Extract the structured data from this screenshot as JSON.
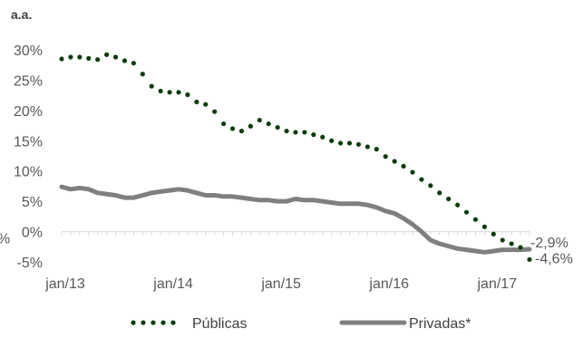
{
  "chart_data": {
    "type": "line",
    "unit_label": "a.a.",
    "y_ticks": [
      "30%",
      "25%",
      "20%",
      "15%",
      "10%",
      "5%",
      "0%",
      "-5%"
    ],
    "y_tick_values": [
      30,
      25,
      20,
      15,
      10,
      5,
      0,
      -5
    ],
    "x_ticks": [
      "jan/13",
      "jan/14",
      "jan/15",
      "jan/16",
      "jan/17"
    ],
    "ylim": [
      -5,
      30
    ],
    "x_range": [
      "jan/13",
      "fev/17"
    ],
    "grid": false,
    "legend_position": "bottom",
    "colors": {
      "publicas": "#0b3d0b",
      "privadas": "#7f7f7f"
    },
    "series": [
      {
        "name": "Públicas",
        "style": "dotted",
        "values": [
          28.5,
          28.8,
          28.8,
          28.6,
          28.4,
          29.2,
          28.8,
          28.2,
          27.8,
          26.0,
          24.0,
          23.2,
          23.0,
          23.0,
          22.6,
          21.4,
          21.0,
          19.8,
          17.8,
          17.0,
          16.6,
          17.4,
          18.4,
          17.8,
          17.2,
          16.6,
          16.4,
          16.4,
          16.0,
          15.6,
          15.0,
          14.6,
          14.6,
          14.4,
          14.0,
          13.6,
          12.4,
          11.6,
          10.8,
          9.8,
          8.6,
          7.6,
          6.4,
          5.4,
          4.4,
          3.2,
          2.0,
          0.8,
          -0.4,
          -1.4,
          -2.0,
          -2.6,
          -4.6
        ]
      },
      {
        "name": "Privadas*",
        "style": "solid",
        "values": [
          7.4,
          7.0,
          7.2,
          7.0,
          6.4,
          6.2,
          6.0,
          5.6,
          5.6,
          6.0,
          6.4,
          6.6,
          6.8,
          7.0,
          6.8,
          6.4,
          6.0,
          6.0,
          5.8,
          5.8,
          5.6,
          5.4,
          5.2,
          5.2,
          5.0,
          5.0,
          5.4,
          5.2,
          5.2,
          5.0,
          4.8,
          4.6,
          4.6,
          4.6,
          4.4,
          4.0,
          3.4,
          3.0,
          2.2,
          1.2,
          0.0,
          -1.4,
          -2.0,
          -2.4,
          -2.8,
          -3.0,
          -3.2,
          -3.4,
          -3.2,
          -3.0,
          -3.0,
          -3.0,
          -2.9
        ]
      }
    ],
    "end_labels": [
      "-2,9%",
      "-4,6%"
    ],
    "truncated_left_label": "%"
  }
}
